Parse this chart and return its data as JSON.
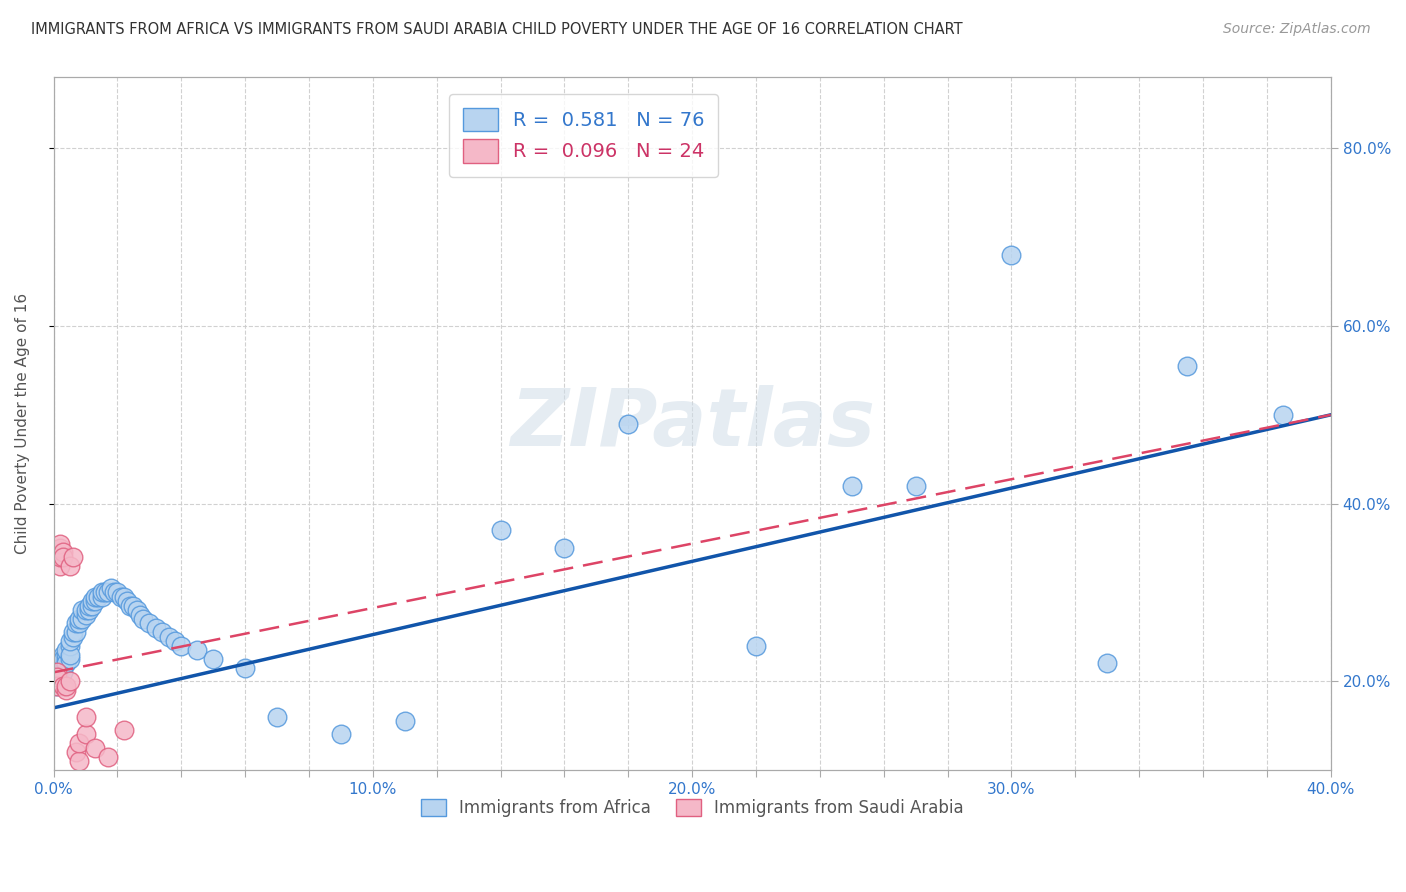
{
  "title": "IMMIGRANTS FROM AFRICA VS IMMIGRANTS FROM SAUDI ARABIA CHILD POVERTY UNDER THE AGE OF 16 CORRELATION CHART",
  "source": "Source: ZipAtlas.com",
  "xlabel": "",
  "ylabel": "Child Poverty Under the Age of 16",
  "xlim": [
    0.0,
    0.4
  ],
  "ylim": [
    0.1,
    0.88
  ],
  "ytick_labels": [
    "20.0%",
    "40.0%",
    "60.0%",
    "80.0%"
  ],
  "ytick_values": [
    0.2,
    0.4,
    0.6,
    0.8
  ],
  "xtick_labels": [
    "0.0%",
    "",
    "",
    "",
    "",
    "10.0%",
    "",
    "",
    "",
    "",
    "20.0%",
    "",
    "",
    "",
    "",
    "30.0%",
    "",
    "",
    "",
    "",
    "40.0%"
  ],
  "xtick_values": [
    0.0,
    0.02,
    0.04,
    0.06,
    0.08,
    0.1,
    0.12,
    0.14,
    0.16,
    0.18,
    0.2,
    0.22,
    0.24,
    0.26,
    0.28,
    0.3,
    0.32,
    0.34,
    0.36,
    0.38,
    0.4
  ],
  "right_ytick_labels": [
    "20.0%",
    "40.0%",
    "60.0%",
    "80.0%"
  ],
  "right_ytick_values": [
    0.2,
    0.4,
    0.6,
    0.8
  ],
  "africa_color": "#b8d4f0",
  "africa_edge_color": "#5599dd",
  "saudi_color": "#f5b8c8",
  "saudi_edge_color": "#e06080",
  "africa_R": 0.581,
  "africa_N": 76,
  "saudi_R": 0.096,
  "saudi_N": 24,
  "africa_line_color": "#1155aa",
  "saudi_line_color": "#dd4466",
  "watermark": "ZIPatlas",
  "background_color": "#ffffff",
  "grid_color": "#cccccc",
  "title_color": "#333333",
  "axis_label_color": "#555555",
  "legend_label_africa": "Immigrants from Africa",
  "legend_label_saudi": "Immigrants from Saudi Arabia",
  "africa_x": [
    0.001,
    0.001,
    0.001,
    0.001,
    0.001,
    0.002,
    0.002,
    0.002,
    0.002,
    0.003,
    0.003,
    0.003,
    0.003,
    0.003,
    0.004,
    0.004,
    0.004,
    0.004,
    0.005,
    0.005,
    0.005,
    0.005,
    0.006,
    0.006,
    0.007,
    0.007,
    0.008,
    0.008,
    0.009,
    0.009,
    0.01,
    0.01,
    0.011,
    0.011,
    0.012,
    0.012,
    0.013,
    0.013,
    0.014,
    0.015,
    0.015,
    0.016,
    0.017,
    0.018,
    0.019,
    0.02,
    0.021,
    0.022,
    0.023,
    0.024,
    0.025,
    0.026,
    0.027,
    0.028,
    0.03,
    0.032,
    0.034,
    0.036,
    0.038,
    0.04,
    0.045,
    0.05,
    0.06,
    0.07,
    0.09,
    0.11,
    0.14,
    0.16,
    0.18,
    0.22,
    0.25,
    0.27,
    0.3,
    0.33,
    0.355,
    0.385
  ],
  "africa_y": [
    0.21,
    0.22,
    0.195,
    0.2,
    0.215,
    0.22,
    0.21,
    0.2,
    0.215,
    0.225,
    0.21,
    0.22,
    0.23,
    0.225,
    0.225,
    0.23,
    0.22,
    0.235,
    0.225,
    0.24,
    0.23,
    0.245,
    0.25,
    0.255,
    0.255,
    0.265,
    0.265,
    0.27,
    0.27,
    0.28,
    0.275,
    0.28,
    0.28,
    0.285,
    0.285,
    0.29,
    0.29,
    0.295,
    0.295,
    0.295,
    0.3,
    0.3,
    0.3,
    0.305,
    0.3,
    0.3,
    0.295,
    0.295,
    0.29,
    0.285,
    0.285,
    0.28,
    0.275,
    0.27,
    0.265,
    0.26,
    0.255,
    0.25,
    0.245,
    0.24,
    0.235,
    0.225,
    0.215,
    0.16,
    0.14,
    0.155,
    0.37,
    0.35,
    0.49,
    0.24,
    0.42,
    0.42,
    0.68,
    0.22,
    0.555,
    0.5
  ],
  "saudi_x": [
    0.001,
    0.001,
    0.001,
    0.001,
    0.002,
    0.002,
    0.002,
    0.002,
    0.003,
    0.003,
    0.003,
    0.004,
    0.004,
    0.005,
    0.005,
    0.006,
    0.007,
    0.008,
    0.008,
    0.01,
    0.01,
    0.013,
    0.017,
    0.022
  ],
  "saudi_y": [
    0.2,
    0.21,
    0.195,
    0.205,
    0.33,
    0.34,
    0.35,
    0.355,
    0.195,
    0.345,
    0.34,
    0.19,
    0.195,
    0.2,
    0.33,
    0.34,
    0.12,
    0.11,
    0.13,
    0.14,
    0.16,
    0.125,
    0.115,
    0.145
  ]
}
